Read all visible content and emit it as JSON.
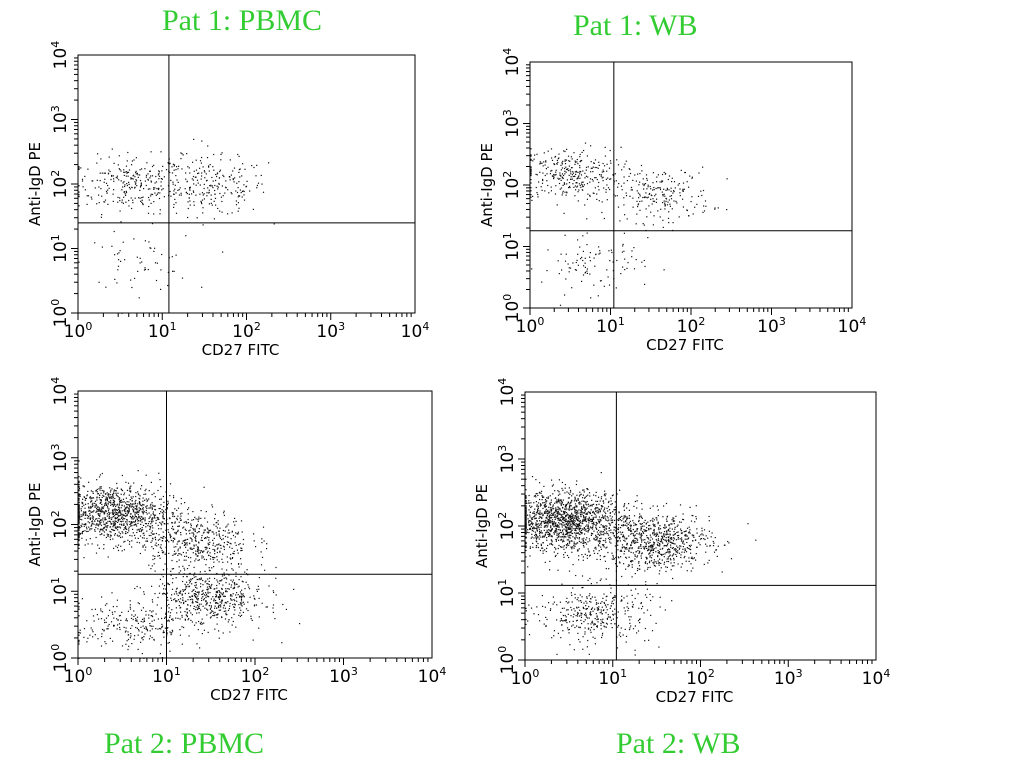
{
  "chart_data": [
    {
      "type": "scatter",
      "title": "Pat 1: PBMC",
      "xlabel": "CD27 FITC",
      "ylabel": "Anti-IgD PE",
      "x_scale": "log",
      "y_scale": "log",
      "xlim": [
        1,
        10000
      ],
      "ylim": [
        1,
        10000
      ],
      "xticks": [
        "10",
        "10",
        "10",
        "10",
        "10"
      ],
      "xtick_exp": [
        "0",
        "1",
        "2",
        "3",
        "4"
      ],
      "yticks": [
        "10",
        "10",
        "10",
        "10",
        "10"
      ],
      "ytick_exp": [
        "0",
        "1",
        "2",
        "3",
        "4"
      ],
      "gate": {
        "x": 12,
        "y": 25
      },
      "points": 560,
      "clusters": [
        {
          "x": 4,
          "y": 100,
          "weight": 0.42
        },
        {
          "x": 40,
          "y": 90,
          "weight": 0.38
        },
        {
          "x": 15,
          "y": 150,
          "weight": 0.1
        },
        {
          "x": 5,
          "y": 6,
          "weight": 0.1
        }
      ]
    },
    {
      "type": "scatter",
      "title": "Pat 1: WB",
      "xlabel": "CD27 FITC",
      "ylabel": "Anti-IgD PE",
      "x_scale": "log",
      "y_scale": "log",
      "xlim": [
        1,
        10000
      ],
      "ylim": [
        1,
        10000
      ],
      "xticks": [
        "10",
        "10",
        "10",
        "10",
        "10"
      ],
      "xtick_exp": [
        "0",
        "1",
        "2",
        "3",
        "4"
      ],
      "yticks": [
        "10",
        "10",
        "10",
        "10",
        "10"
      ],
      "ytick_exp": [
        "0",
        "1",
        "2",
        "3",
        "4"
      ],
      "gate": {
        "x": 11,
        "y": 18
      },
      "points": 640,
      "clusters": [
        {
          "x": 3,
          "y": 150,
          "weight": 0.5
        },
        {
          "x": 40,
          "y": 70,
          "weight": 0.35
        },
        {
          "x": 6,
          "y": 5,
          "weight": 0.15
        }
      ]
    },
    {
      "type": "scatter",
      "title": "Pat 2: PBMC",
      "xlabel": "CD27 FITC",
      "ylabel": "Anti-IgD PE",
      "x_scale": "log",
      "y_scale": "log",
      "xlim": [
        1,
        10000
      ],
      "ylim": [
        1,
        10000
      ],
      "xticks": [
        "10",
        "10",
        "10",
        "10",
        "10"
      ],
      "xtick_exp": [
        "0",
        "1",
        "2",
        "3",
        "4"
      ],
      "yticks": [
        "10",
        "10",
        "10",
        "10",
        "10"
      ],
      "ytick_exp": [
        "0",
        "1",
        "2",
        "3",
        "4"
      ],
      "gate": {
        "x": 10,
        "y": 18
      },
      "points": 2300,
      "clusters": [
        {
          "x": 2.5,
          "y": 150,
          "weight": 0.45
        },
        {
          "x": 20,
          "y": 60,
          "weight": 0.2
        },
        {
          "x": 30,
          "y": 8,
          "weight": 0.25
        },
        {
          "x": 4,
          "y": 3,
          "weight": 0.1
        }
      ]
    },
    {
      "type": "scatter",
      "title": "Pat 2: WB",
      "xlabel": "CD27 FITC",
      "ylabel": "Anti-IgD PE",
      "x_scale": "log",
      "y_scale": "log",
      "xlim": [
        1,
        10000
      ],
      "ylim": [
        1,
        10000
      ],
      "xticks": [
        "10",
        "10",
        "10",
        "10",
        "10"
      ],
      "xtick_exp": [
        "0",
        "1",
        "2",
        "3",
        "4"
      ],
      "yticks": [
        "10",
        "10",
        "10",
        "10",
        "10"
      ],
      "ytick_exp": [
        "0",
        "1",
        "2",
        "3",
        "4"
      ],
      "gate": {
        "x": 11,
        "y": 13
      },
      "points": 2500,
      "clusters": [
        {
          "x": 3,
          "y": 120,
          "weight": 0.55
        },
        {
          "x": 30,
          "y": 60,
          "weight": 0.3
        },
        {
          "x": 6,
          "y": 5,
          "weight": 0.15
        }
      ]
    }
  ]
}
